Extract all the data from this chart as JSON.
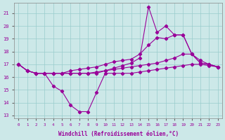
{
  "xlabel": "Windchill (Refroidissement éolien,°C)",
  "x": [
    0,
    1,
    2,
    3,
    4,
    5,
    6,
    7,
    8,
    9,
    10,
    11,
    12,
    13,
    14,
    15,
    16,
    17,
    18,
    19,
    20,
    21,
    22,
    23
  ],
  "line_spike": [
    17.0,
    16.5,
    16.3,
    16.3,
    16.3,
    16.3,
    16.3,
    16.3,
    16.3,
    16.3,
    16.5,
    16.7,
    16.9,
    17.1,
    17.5,
    21.5,
    19.5,
    20.0,
    19.3,
    19.3,
    17.8,
    17.1,
    17.0,
    16.8
  ],
  "line_upper": [
    17.0,
    16.5,
    16.3,
    16.3,
    16.3,
    16.3,
    16.5,
    16.6,
    16.7,
    16.8,
    17.0,
    17.2,
    17.3,
    17.4,
    17.8,
    18.5,
    19.1,
    19.0,
    19.3,
    19.3,
    17.8,
    17.1,
    17.0,
    16.8
  ],
  "line_mid": [
    17.0,
    16.5,
    16.3,
    16.3,
    16.3,
    16.3,
    16.3,
    16.3,
    16.3,
    16.4,
    16.5,
    16.6,
    16.7,
    16.8,
    16.9,
    17.0,
    17.1,
    17.3,
    17.5,
    17.8,
    17.8,
    17.3,
    17.0,
    16.8
  ],
  "line_lower": [
    17.0,
    16.5,
    16.3,
    16.3,
    15.3,
    14.9,
    13.8,
    13.3,
    13.3,
    14.8,
    16.3,
    16.3,
    16.3,
    16.3,
    16.4,
    16.5,
    16.6,
    16.7,
    16.8,
    16.9,
    17.0,
    17.0,
    16.9,
    16.8
  ],
  "ylim_min": 12.8,
  "ylim_max": 21.8,
  "yticks": [
    13,
    14,
    15,
    16,
    17,
    18,
    19,
    20,
    21
  ],
  "bg_color": "#cce8e8",
  "line_color": "#990099",
  "grid_color": "#99cccc",
  "tick_color": "#990099",
  "label_color": "#990099"
}
